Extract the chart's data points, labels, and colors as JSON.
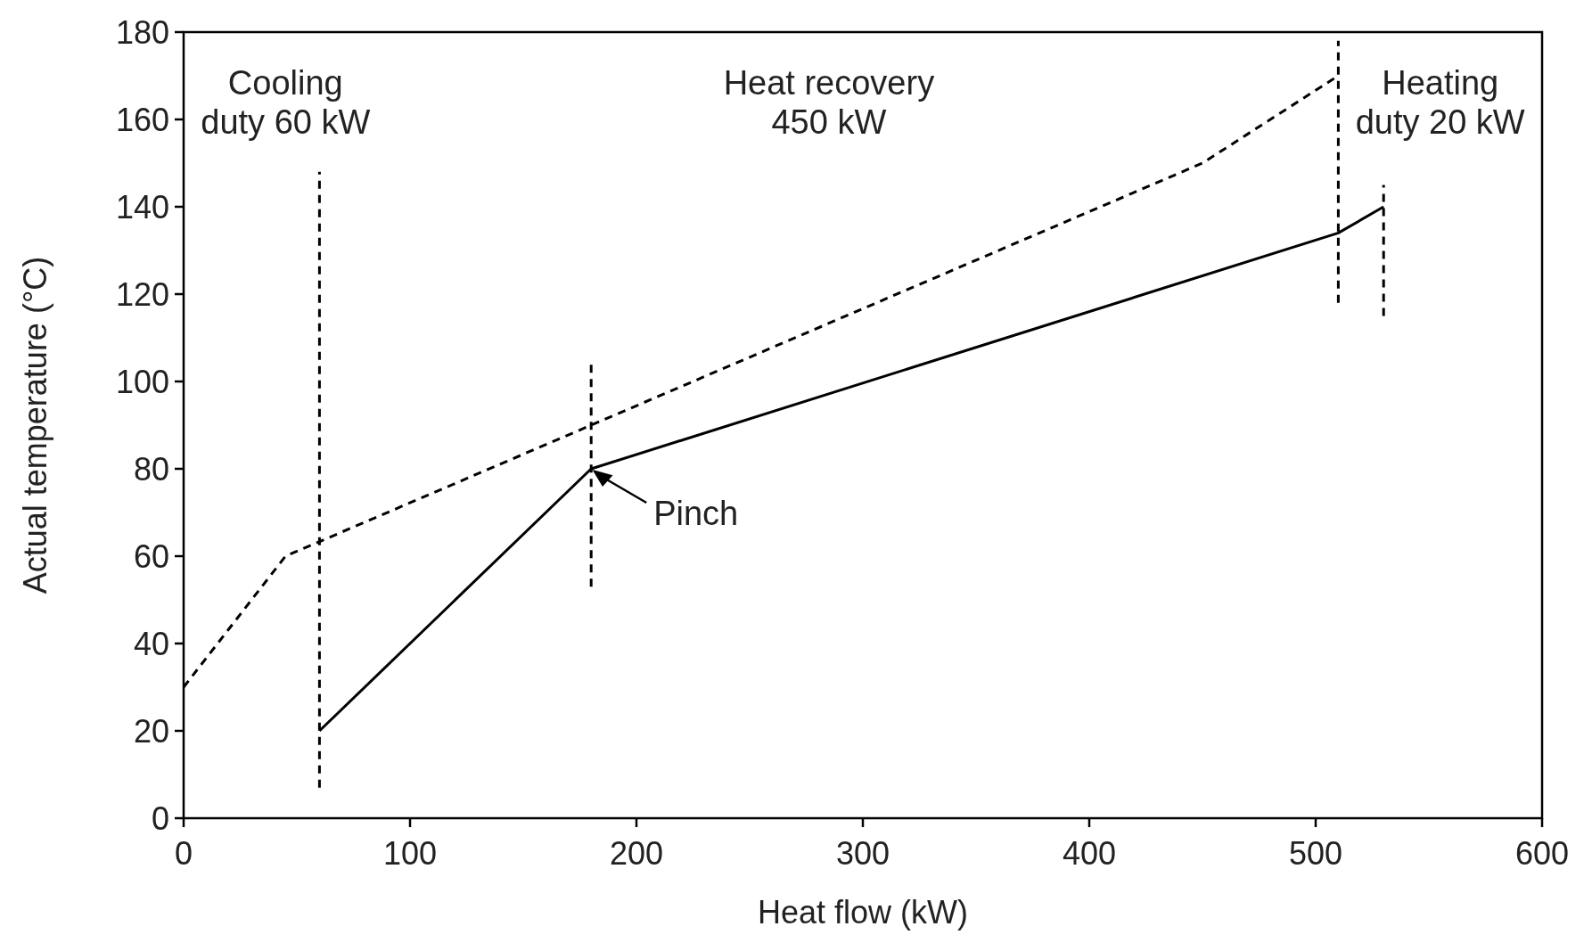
{
  "chart_data": {
    "type": "line",
    "xlabel": "Heat flow (kW)",
    "ylabel": "Actual temperature (°C)",
    "xlim": [
      0,
      600
    ],
    "xticks": [
      0,
      100,
      200,
      300,
      400,
      500,
      600
    ],
    "ylim": [
      0,
      180
    ],
    "yticks": [
      0,
      20,
      40,
      60,
      80,
      100,
      120,
      140,
      160,
      180
    ],
    "grid": false,
    "series": [
      {
        "color": "#000000",
        "line_style": "dashed",
        "x": [
          0,
          45,
          180,
          450,
          510
        ],
        "values": [
          30,
          60,
          90,
          150,
          170
        ]
      },
      {
        "color": "#000000",
        "line_style": "solid",
        "x": [
          60,
          180,
          510,
          530
        ],
        "values": [
          20,
          80,
          134,
          140
        ]
      },
      {
        "color": "#000000",
        "line_style": "dashed",
        "x": [
          60,
          60
        ],
        "values": [
          7,
          148
        ]
      },
      {
        "color": "#000000",
        "line_style": "dashed",
        "x": [
          180,
          180
        ],
        "values": [
          53,
          105
        ]
      },
      {
        "color": "#000000",
        "line_style": "dashed",
        "x": [
          510,
          510
        ],
        "values": [
          118,
          178
        ]
      },
      {
        "color": "#000000",
        "line_style": "dashed",
        "x": [
          530,
          530
        ],
        "values": [
          115,
          145
        ]
      }
    ],
    "annotations": [
      "Cooling\nduty 60 kW",
      "Heat recovery\n450 kW",
      "Heating\nduty 20 kW",
      {
        "text": "Pinch",
        "x": 180,
        "y": 80
      }
    ]
  }
}
